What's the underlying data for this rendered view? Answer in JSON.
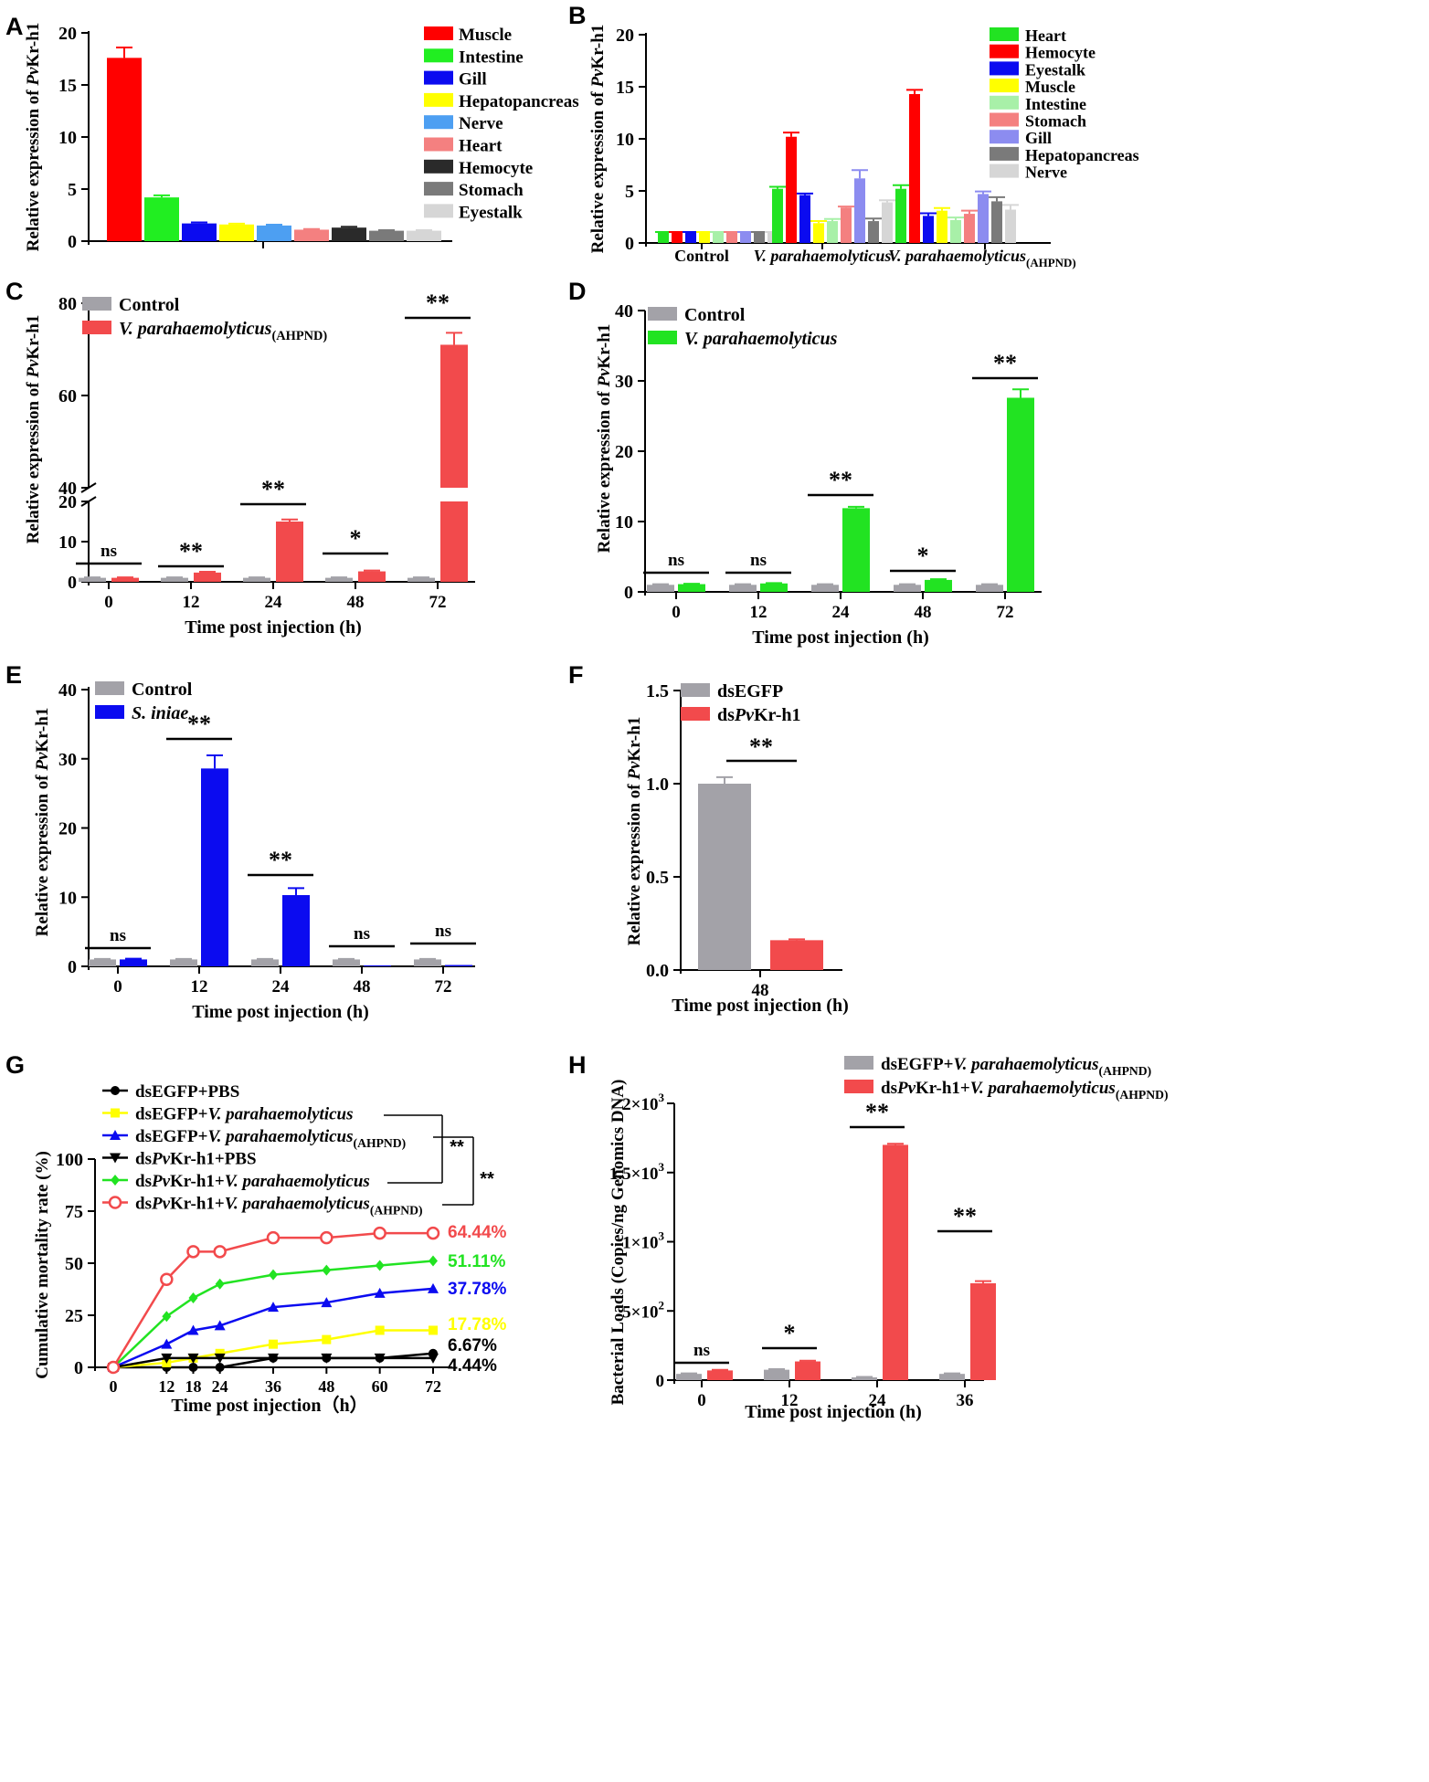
{
  "colors": {
    "red": "#f24a4c",
    "green": "#22e322",
    "blue": "#0b0bf0",
    "grey": "#a3a2a8",
    "pure_red": "#ff0000",
    "lime": "#21ee21",
    "yellow": "#ffff00",
    "sky": "#4d9ff2",
    "salmon": "#f48080",
    "dark": "#2a2a2a",
    "mid": "#7a7a7a",
    "light": "#d6d6d6",
    "pale_green": "#a8f0a8",
    "lavender": "#8c8cf0",
    "black": "#000000"
  },
  "chart_data": [
    {
      "id": "A",
      "panel_label": "A",
      "type": "bar",
      "ylabel": "Relative expression of PvKr-h1",
      "ylim": [
        0,
        20
      ],
      "yticks": [
        0,
        5,
        10,
        15,
        20
      ],
      "legend_position": "top-right",
      "legend": [
        "Muscle",
        "Intestine",
        "Gill",
        "Hepatopancreas",
        "Nerve",
        "Heart",
        "Hemocyte",
        "Stomach",
        "Eyestalk"
      ],
      "categories": [
        "Muscle",
        "Intestine",
        "Gill",
        "Hepatopancreas",
        "Nerve",
        "Heart",
        "Hemocyte",
        "Stomach",
        "Eyestalk"
      ],
      "values": [
        17.6,
        4.2,
        1.7,
        1.6,
        1.5,
        1.1,
        1.3,
        1.0,
        1.0
      ],
      "errors": [
        1.0,
        0.2,
        0.1,
        0.08,
        0.08,
        0.06,
        0.08,
        0.05,
        0.05
      ],
      "color_keys": [
        "pure_red",
        "lime",
        "blue",
        "yellow",
        "sky",
        "salmon",
        "dark",
        "mid",
        "light"
      ]
    },
    {
      "id": "B",
      "panel_label": "B",
      "type": "bar",
      "ylabel": "Relative expression of PvKr-h1",
      "ylim": [
        0,
        20
      ],
      "yticks": [
        0,
        5,
        10,
        15,
        20
      ],
      "legend_position": "top-right",
      "legend": [
        "Heart",
        "Hemocyte",
        "Eyestalk",
        "Muscle",
        "Intestine",
        "Stomach",
        "Gill",
        "Hepatopancreas",
        "Nerve"
      ],
      "color_keys": [
        "green",
        "pure_red",
        "blue",
        "yellow",
        "pale_green",
        "salmon",
        "lavender",
        "mid",
        "light"
      ],
      "groups": [
        {
          "label": "Control",
          "values": [
            1,
            1,
            1,
            1,
            1,
            1,
            1,
            1,
            1
          ],
          "errors": [
            0.05,
            0.05,
            0.05,
            0.05,
            0.05,
            0.05,
            0.05,
            0.05,
            0.05
          ]
        },
        {
          "label": "V. parahaemolyticus",
          "values": [
            5.2,
            10.2,
            4.6,
            1.9,
            2.1,
            3.4,
            6.2,
            2.1,
            3.9
          ],
          "errors": [
            0.2,
            0.4,
            0.15,
            0.2,
            0.2,
            0.1,
            0.8,
            0.25,
            0.2
          ]
        },
        {
          "label": "V. parahaemolyticus",
          "sub": "(AHPND)",
          "values": [
            5.2,
            14.3,
            2.6,
            3.1,
            2.2,
            2.8,
            4.7,
            4.0,
            3.2
          ],
          "errors": [
            0.35,
            0.4,
            0.25,
            0.25,
            0.25,
            0.3,
            0.25,
            0.4,
            0.45
          ]
        }
      ]
    },
    {
      "id": "C",
      "panel_label": "C",
      "type": "bar",
      "ylabel": "Relative expression of PvKr-h1",
      "xlabel": "Time post injection (h)",
      "broken_axis": {
        "lower": [
          0,
          20
        ],
        "upper": [
          40,
          80
        ]
      },
      "yticks_lower": [
        0,
        10,
        20
      ],
      "yticks_upper": [
        40,
        60,
        80
      ],
      "categories": [
        "0",
        "12",
        "24",
        "48",
        "72"
      ],
      "series": [
        {
          "name": "Control",
          "color_key": "grey",
          "values": [
            1,
            1,
            1,
            1,
            1
          ],
          "errors": [
            0.1,
            0.1,
            0.1,
            0.1,
            0.1
          ]
        },
        {
          "name": "V. parahaemolyticus",
          "sub": "(AHPND)",
          "color_key": "red",
          "values": [
            1,
            2.3,
            15,
            2.6,
            71
          ],
          "errors": [
            0.1,
            0.2,
            0.5,
            0.2,
            2.6
          ]
        }
      ],
      "significance": [
        "ns",
        "**",
        "**",
        "*",
        "**"
      ]
    },
    {
      "id": "D",
      "panel_label": "D",
      "type": "bar",
      "ylabel": "Relative expression of PvKr-h1",
      "xlabel": "Time post injection (h)",
      "ylim": [
        0,
        40
      ],
      "yticks": [
        0,
        10,
        20,
        30,
        40
      ],
      "categories": [
        "0",
        "12",
        "24",
        "48",
        "72"
      ],
      "series": [
        {
          "name": "Control",
          "color_key": "grey",
          "values": [
            1,
            1,
            1,
            1,
            1
          ],
          "errors": [
            0.08,
            0.08,
            0.08,
            0.08,
            0.08
          ]
        },
        {
          "name": "V. parahaemolyticus",
          "color_key": "green",
          "values": [
            1.1,
            1.2,
            11.9,
            1.7,
            27.6
          ],
          "errors": [
            0.05,
            0.05,
            0.2,
            0.1,
            1.2
          ]
        }
      ],
      "significance": [
        "ns",
        "ns",
        "**",
        "*",
        "**"
      ]
    },
    {
      "id": "E",
      "panel_label": "E",
      "type": "bar",
      "ylabel": "Relative expression of PvKr-h1",
      "xlabel": "Time post injection (h)",
      "ylim": [
        0,
        40
      ],
      "yticks": [
        0,
        10,
        20,
        30,
        40
      ],
      "categories": [
        "0",
        "12",
        "24",
        "48",
        "72"
      ],
      "series": [
        {
          "name": "Control",
          "color_key": "grey",
          "values": [
            1,
            1,
            1,
            1,
            1
          ],
          "errors": [
            0.08,
            0.08,
            0.08,
            0.08,
            0.08
          ]
        },
        {
          "name": "S. iniae",
          "color_key": "blue",
          "values": [
            1,
            28.6,
            10.3,
            0.15,
            0.2
          ],
          "errors": [
            0.1,
            1.9,
            1.0,
            0.02,
            0.02
          ]
        }
      ],
      "significance": [
        "ns",
        "**",
        "**",
        "ns",
        "ns"
      ]
    },
    {
      "id": "F",
      "panel_label": "F",
      "type": "bar",
      "ylabel": "Relative expression of PvKr-h1",
      "xlabel": "Time post injection (h)",
      "ylim": [
        0,
        1.5
      ],
      "yticks": [
        "0.0",
        "0.5",
        "1.0",
        "1.5"
      ],
      "categories": [
        "48"
      ],
      "series": [
        {
          "name": "dsEGFP",
          "color_key": "grey",
          "values": [
            1.0
          ],
          "errors": [
            0.035
          ]
        },
        {
          "name": "dsPvKr-h1",
          "color_key": "red",
          "values": [
            0.16
          ],
          "errors": [
            0.005
          ]
        }
      ],
      "significance": [
        "**"
      ]
    },
    {
      "id": "G",
      "panel_label": "G",
      "type": "line",
      "ylabel": "Cumulative mortality rate (%)",
      "xlabel": "Time post injection（h）",
      "ylim": [
        0,
        100
      ],
      "yticks": [
        0,
        25,
        50,
        75,
        100
      ],
      "x": [
        0,
        12,
        18,
        24,
        36,
        48,
        60,
        72
      ],
      "series": [
        {
          "name": "dsEGFP+PBS",
          "color_key": "black",
          "marker": "circle",
          "values": [
            0,
            0,
            0,
            0,
            4.44,
            4.44,
            4.44,
            6.67
          ],
          "end_label": "6.67%"
        },
        {
          "name": "dsEGFP+V. parahaemolyticus",
          "color_key": "yellow",
          "marker": "square",
          "values": [
            0,
            2.22,
            4.44,
            6.67,
            11.11,
            13.33,
            17.78,
            17.78
          ],
          "end_label": "17.78%"
        },
        {
          "name": "dsEGFP+V. parahaemolyticus(AHPND)",
          "color_key": "blue",
          "marker": "triangle-up",
          "values": [
            0,
            11.11,
            17.78,
            20,
            28.89,
            31.11,
            35.56,
            37.78
          ],
          "end_label": "37.78%"
        },
        {
          "name": "dsPvKr-h1+PBS",
          "color_key": "black",
          "marker": "triangle-down",
          "values": [
            0,
            4.44,
            4.44,
            4.44,
            4.44,
            4.44,
            4.44,
            4.44
          ],
          "end_label": "4.44%"
        },
        {
          "name": "dsPvKr-h1+V. parahaemolyticus",
          "color_key": "green",
          "marker": "diamond",
          "values": [
            0,
            24.44,
            33.33,
            40,
            44.44,
            46.67,
            48.89,
            51.11
          ],
          "end_label": "51.11%"
        },
        {
          "name": "dsPvKr-h1+V. parahaemolyticus(AHPND)",
          "color_key": "red",
          "marker": "open-circle",
          "values": [
            0,
            42.22,
            55.56,
            55.56,
            62.22,
            62.22,
            64.44,
            64.44
          ],
          "end_label": "64.44%"
        }
      ],
      "significance": [
        "**",
        "**"
      ]
    },
    {
      "id": "H",
      "panel_label": "H",
      "type": "bar",
      "ylabel": "Bacterial Loads (Copies/ng Genomics DNA)",
      "xlabel": "Time post injection (h)",
      "ylim": [
        0,
        2000
      ],
      "yticks": [
        {
          "main": "0",
          "exp": ""
        },
        {
          "main": "5×10",
          "exp": "2"
        },
        {
          "main": "1×10",
          "exp": "3"
        },
        {
          "main": "1.5×10",
          "exp": "3"
        },
        {
          "main": "2×10",
          "exp": "3"
        }
      ],
      "categories": [
        "0",
        "12",
        "24",
        "36"
      ],
      "series": [
        {
          "name": "dsEGFP+V. parahaemolyticus(AHPND)",
          "color_key": "grey",
          "values": [
            45,
            75,
            20,
            45
          ],
          "errors": [
            4,
            4,
            3,
            4
          ]
        },
        {
          "name": "dsPvKr-h1+V. parahaemolyticus(AHPND)",
          "color_key": "red",
          "values": [
            70,
            135,
            1700,
            700
          ],
          "errors": [
            4,
            5,
            8,
            15
          ]
        }
      ],
      "significance": [
        "ns",
        "*",
        "**",
        "**"
      ]
    }
  ]
}
